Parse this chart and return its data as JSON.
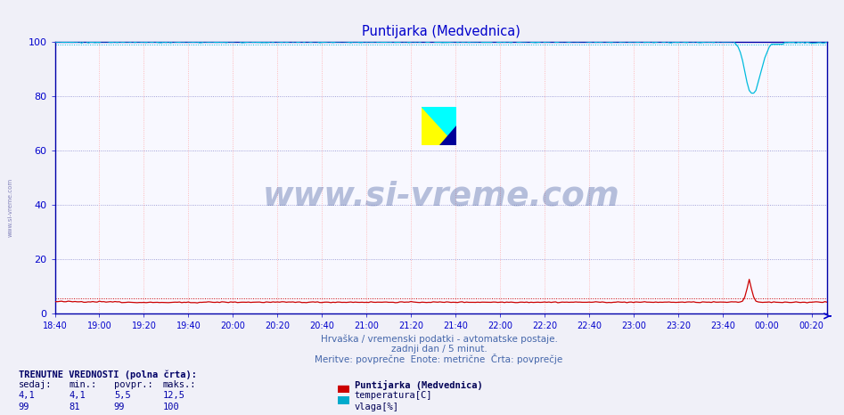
{
  "title": "Puntijarka (Medvednica)",
  "title_color": "#0000cc",
  "background_color": "#f0f0f8",
  "plot_bg_color": "#f8f8ff",
  "grid_color_h": "#8888cc",
  "grid_color_v": "#ffaaaa",
  "ylim": [
    0,
    100
  ],
  "yticks": [
    0,
    20,
    40,
    60,
    80,
    100
  ],
  "x_tick_labels": [
    "18:40",
    "19:00",
    "19:20",
    "19:40",
    "20:00",
    "20:20",
    "20:40",
    "21:00",
    "21:20",
    "21:40",
    "22:00",
    "22:20",
    "22:40",
    "23:00",
    "23:20",
    "23:40",
    "00:00",
    "00:20"
  ],
  "x_tick_positions": [
    0,
    20,
    40,
    60,
    80,
    100,
    120,
    140,
    160,
    180,
    200,
    220,
    240,
    260,
    280,
    300,
    320,
    340
  ],
  "n_points": 348,
  "footer_line1": "Hrvaška / vremenski podatki - avtomatske postaje.",
  "footer_line2": "zadnji dan / 5 minut.",
  "footer_line3": "Meritve: povprečne  Enote: metrične  Črta: povprečje",
  "footer_color": "#4466aa",
  "watermark_text": "www.si-vreme.com",
  "watermark_color": "#1a3a8a",
  "watermark_alpha": 0.3,
  "label_title": "TRENUTNE VREDNOSTI (polna črta):",
  "col_headers": [
    "sedaj:",
    "min.:",
    "povpr.:",
    "maks.:"
  ],
  "row1_values": [
    "4,1",
    "4,1",
    "5,5",
    "12,5"
  ],
  "row2_values": [
    "99",
    "81",
    "99",
    "100"
  ],
  "legend_station": "Puntijarka (Medvednica)",
  "legend_items": [
    {
      "label": "temperatura[C]",
      "color": "#cc0000"
    },
    {
      "label": "vlaga[%]",
      "color": "#00aacc"
    }
  ],
  "temp_color": "#cc0000",
  "humidity_color": "#00bbdd",
  "axis_color": "#0000cc",
  "tick_color": "#0000cc",
  "spine_color": "#0000aa",
  "avg_temp": 5.5,
  "avg_hum": 99.0,
  "temp_spike_index": 312,
  "temp_spike_value": 12.5,
  "hum_dip_index": 314,
  "hum_dip_value": 81
}
